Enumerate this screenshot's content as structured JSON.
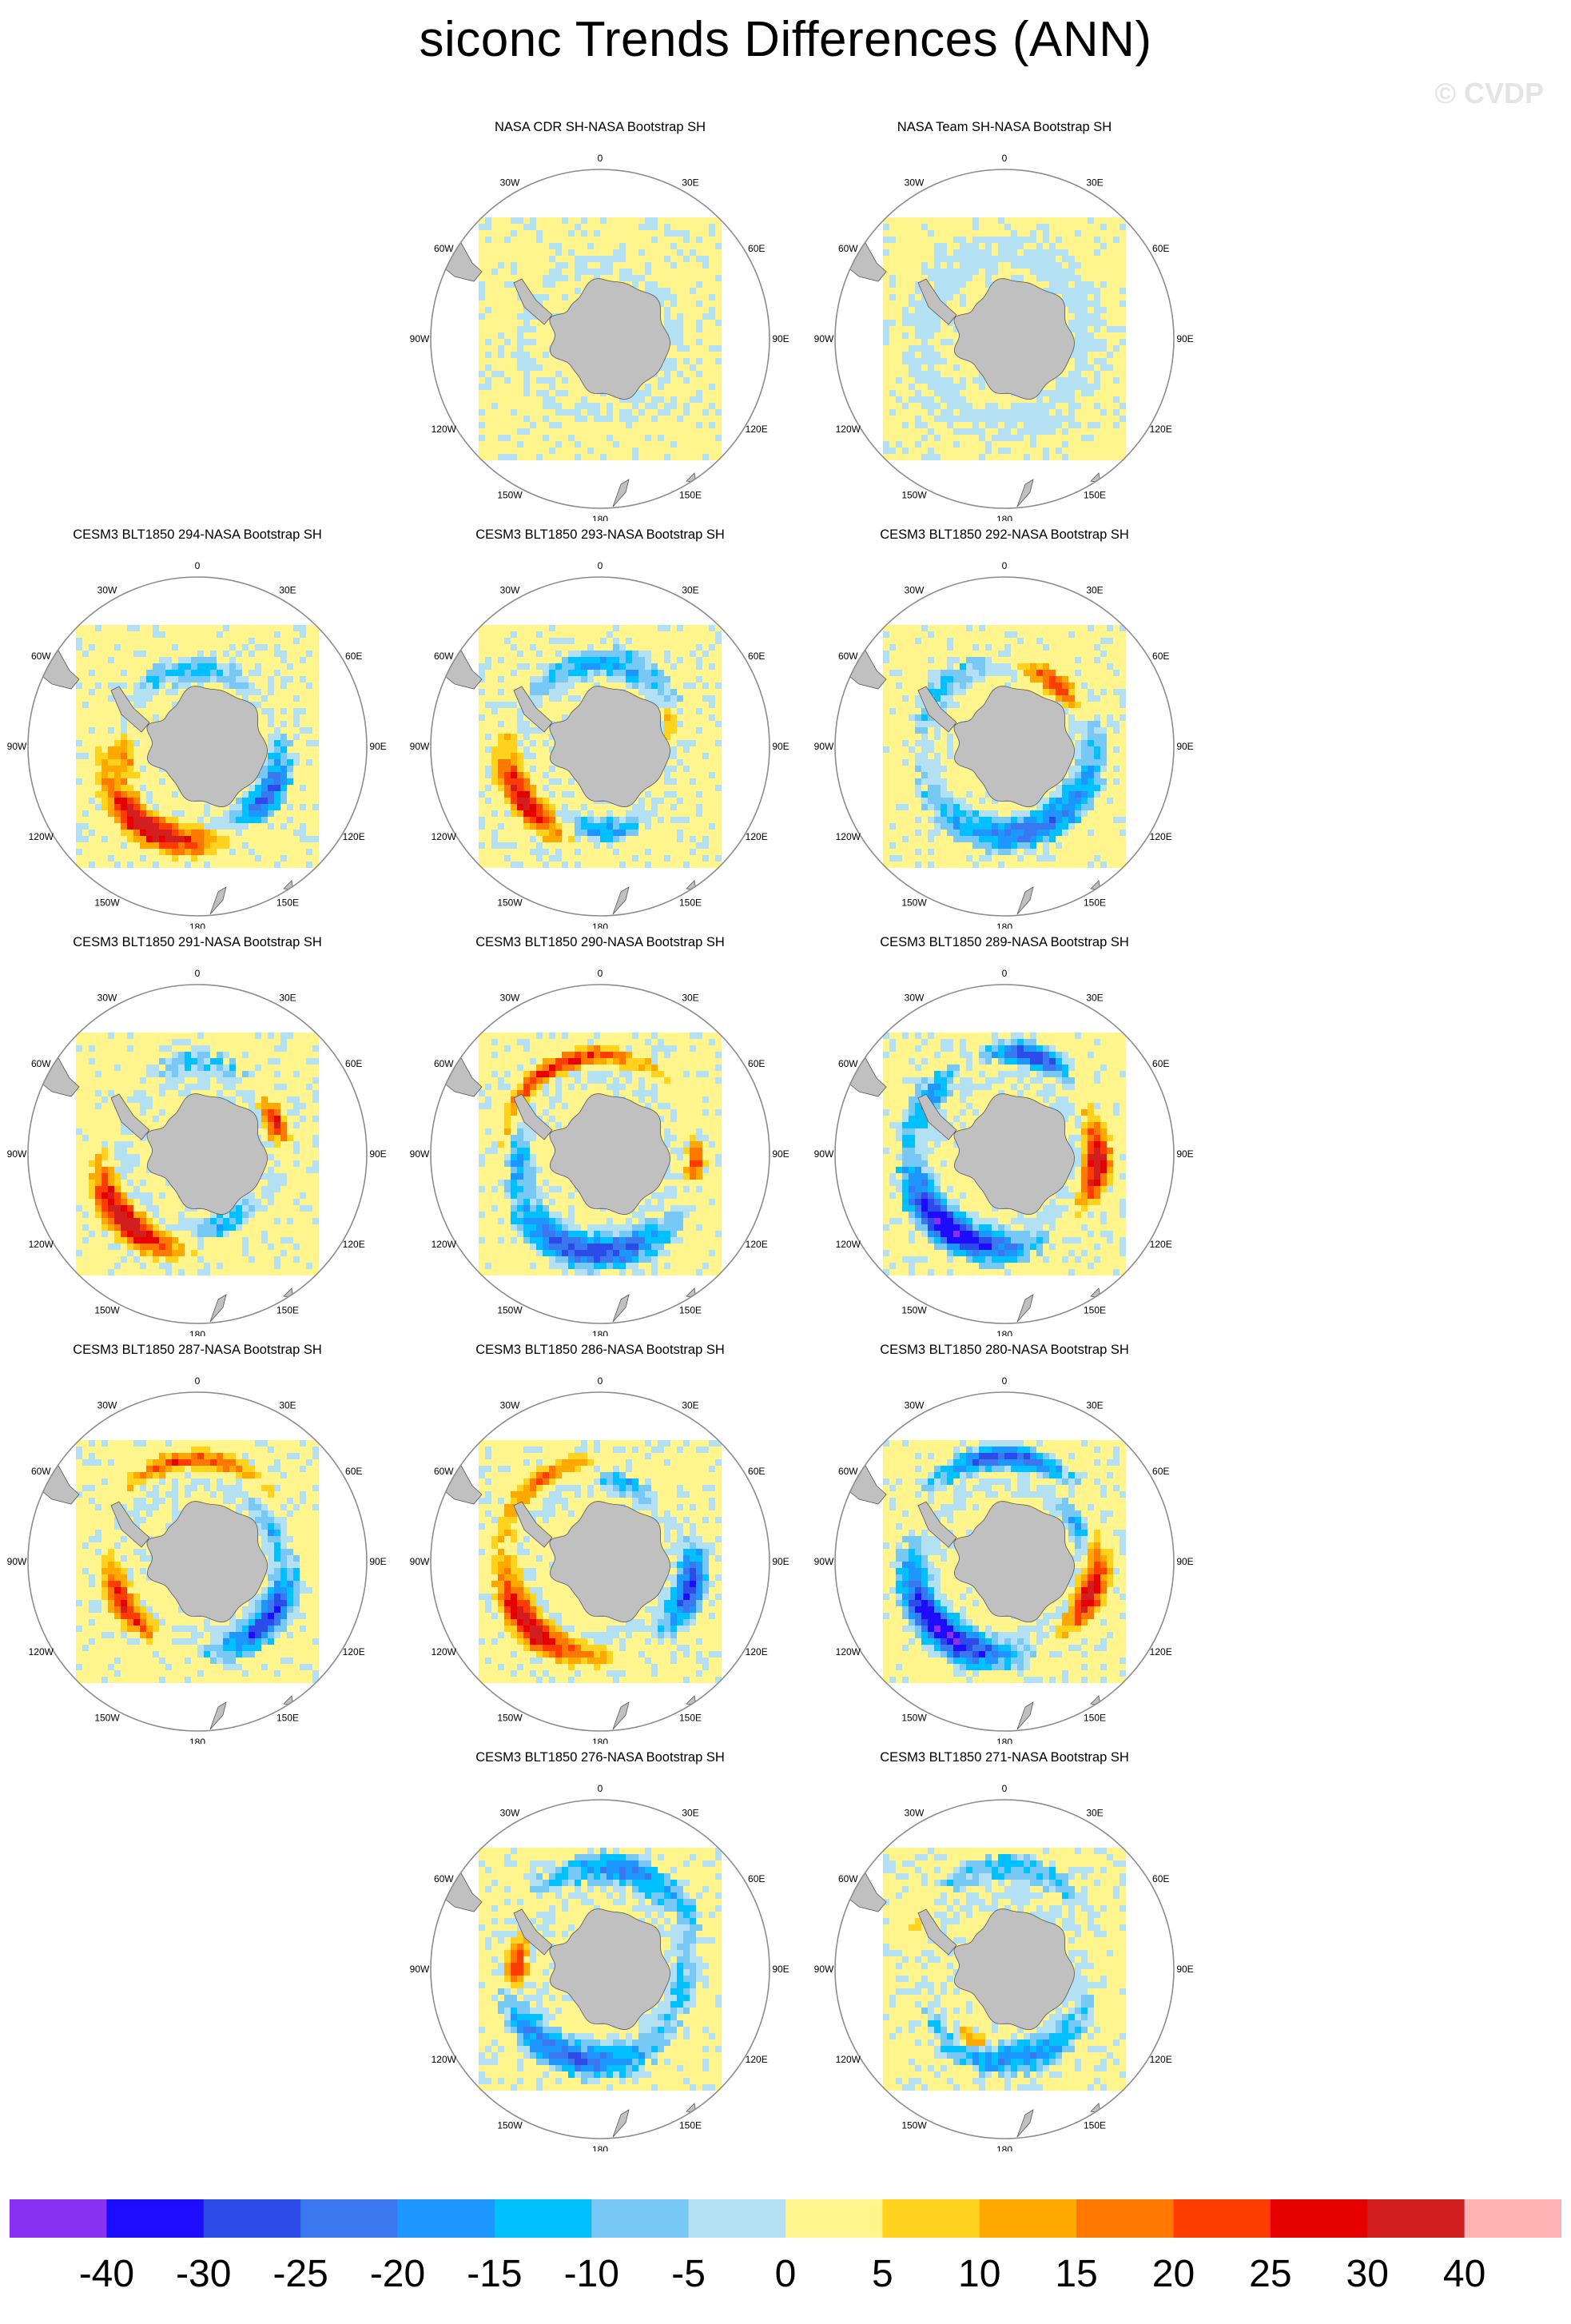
{
  "title": "siconc Trends Differences (ANN)",
  "watermark": "© CVDP",
  "colors": {
    "land": "#c0c0c0",
    "coast": "#555555",
    "circle": "#8c8c8c",
    "background": "#ffffff"
  },
  "longitude_labels": [
    "0",
    "30E",
    "60E",
    "90E",
    "120E",
    "150E",
    "180",
    "150W",
    "120W",
    "90W",
    "60W",
    "30W"
  ],
  "colorbar": {
    "labels": [
      "-40",
      "-30",
      "-25",
      "-20",
      "-15",
      "-10",
      "-5",
      "0",
      "5",
      "10",
      "15",
      "20",
      "25",
      "30",
      "40"
    ],
    "colors": [
      "#8a30f0",
      "#1e0cff",
      "#2c4be8",
      "#3a78ef",
      "#1e96ff",
      "#00c0ff",
      "#78c8f5",
      "#b4e0f4",
      "#fff58c",
      "#ffd21e",
      "#ffa800",
      "#ff7800",
      "#ff3c00",
      "#e60000",
      "#d21e1e",
      "#ffb4b4"
    ]
  },
  "panels": [
    {
      "title": "NASA CDR SH-NASA Bootstrap SH",
      "pattern": "cdr"
    },
    {
      "title": "NASA Team SH-NASA Bootstrap SH",
      "pattern": "team"
    },
    {
      "title": "CESM3 BLT1850 294-NASA Bootstrap SH",
      "pattern": "m294"
    },
    {
      "title": "CESM3 BLT1850 293-NASA Bootstrap SH",
      "pattern": "m293"
    },
    {
      "title": "CESM3 BLT1850 292-NASA Bootstrap SH",
      "pattern": "m292"
    },
    {
      "title": "CESM3 BLT1850 291-NASA Bootstrap SH",
      "pattern": "m291"
    },
    {
      "title": "CESM3 BLT1850 290-NASA Bootstrap SH",
      "pattern": "m290"
    },
    {
      "title": "CESM3 BLT1850 289-NASA Bootstrap SH",
      "pattern": "m289"
    },
    {
      "title": "CESM3 BLT1850 287-NASA Bootstrap SH",
      "pattern": "m287"
    },
    {
      "title": "CESM3 BLT1850 286-NASA Bootstrap SH",
      "pattern": "m286"
    },
    {
      "title": "CESM3 BLT1850 280-NASA Bootstrap SH",
      "pattern": "m280"
    },
    {
      "title": "CESM3 BLT1850 276-NASA Bootstrap SH",
      "pattern": "m276"
    },
    {
      "title": "CESM3 BLT1850 271-NASA Bootstrap SH",
      "pattern": "m271"
    }
  ]
}
